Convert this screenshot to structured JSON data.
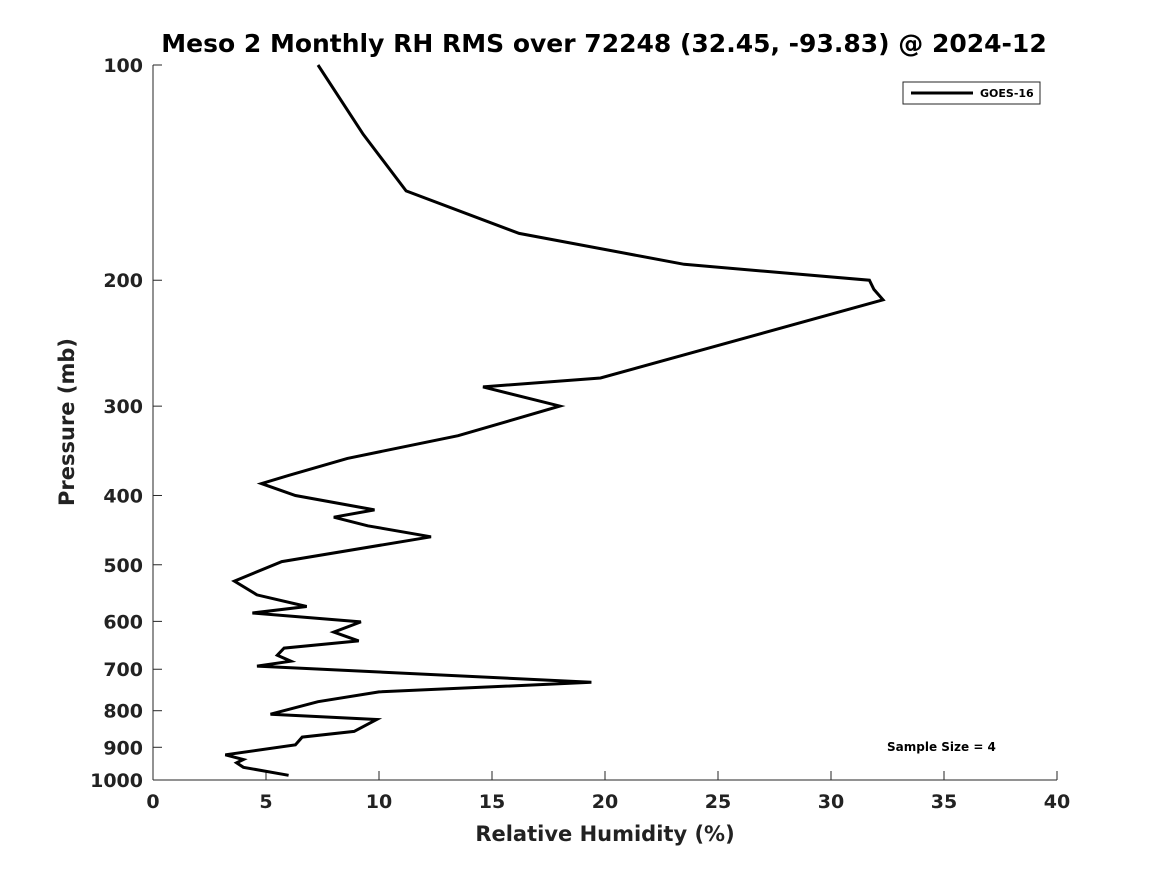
{
  "chart_data": {
    "type": "line",
    "title": "Meso 2 Monthly RH RMS over 72248 (32.45, -93.83) @ 2024-12",
    "xlabel": "Relative Humidity (%)",
    "ylabel": "Pressure (mb)",
    "xlim": [
      0,
      40
    ],
    "ylim": [
      100,
      1000
    ],
    "y_scale": "log",
    "y_reversed": true,
    "x_ticks": [
      "0",
      "5",
      "10",
      "15",
      "20",
      "25",
      "30",
      "35",
      "40"
    ],
    "y_ticks": [
      "100",
      "200",
      "300",
      "400",
      "500",
      "600",
      "700",
      "800",
      "900",
      "1000"
    ],
    "grid": false,
    "legend_position": "top-right",
    "series": [
      {
        "name": "GOES-16",
        "color": "#000000",
        "x": [
          7.3,
          9.3,
          11.2,
          16.2,
          23.5,
          31.7,
          31.9,
          32.3,
          19.8,
          14.6,
          18.0,
          13.5,
          8.6,
          6.0,
          4.8,
          6.3,
          9.8,
          8.0,
          9.5,
          12.3,
          5.7,
          3.6,
          4.6,
          6.8,
          4.4,
          9.2,
          8.0,
          9.1,
          5.8,
          5.5,
          6.1,
          4.6,
          19.4,
          10.0,
          7.3,
          5.2,
          9.9,
          8.9,
          6.6,
          6.3,
          3.2,
          4.0,
          3.7,
          4.0,
          6.0
        ],
        "y": [
          100,
          125,
          150,
          172,
          190,
          200,
          206,
          213,
          274,
          282,
          300,
          330,
          355,
          375,
          385,
          400,
          419,
          429,
          441,
          457,
          495,
          527,
          551,
          572,
          584,
          601,
          621,
          639,
          654,
          669,
          682,
          693,
          730,
          753,
          777,
          809,
          823,
          855,
          871,
          893,
          922,
          936,
          946,
          960,
          985
        ]
      }
    ],
    "annotations": [
      "Sample Size = 4"
    ]
  }
}
